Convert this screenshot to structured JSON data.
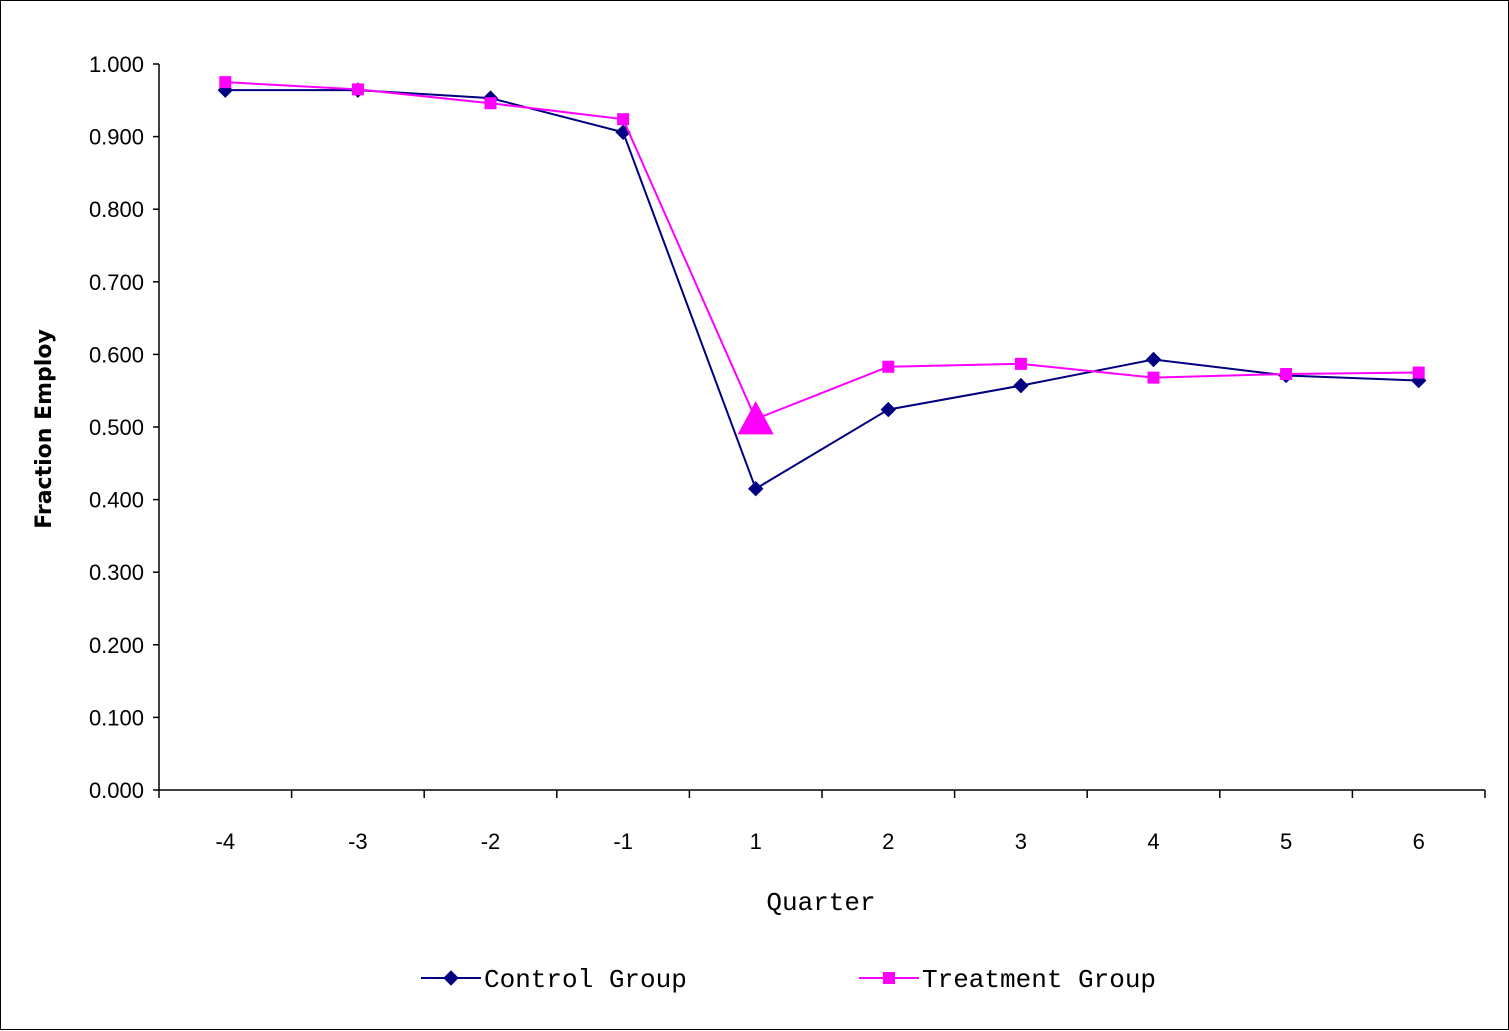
{
  "chart_data": {
    "type": "line",
    "title": "",
    "xlabel": "Quarter",
    "ylabel": "Fraction Employ",
    "categories": [
      "-4",
      "-3",
      "-2",
      "-1",
      "1",
      "2",
      "3",
      "4",
      "5",
      "6"
    ],
    "y_ticks": [
      "0.000",
      "0.100",
      "0.200",
      "0.300",
      "0.400",
      "0.500",
      "0.600",
      "0.700",
      "0.800",
      "0.900",
      "1.000"
    ],
    "ylim": [
      0,
      1
    ],
    "grid": false,
    "legend_position": "bottom",
    "series": [
      {
        "name": "Control Group",
        "color": "#000080",
        "marker": "diamond",
        "values": [
          0.964,
          0.964,
          0.953,
          0.906,
          0.415,
          0.524,
          0.557,
          0.593,
          0.571,
          0.564
        ]
      },
      {
        "name": "Treatment Group",
        "color": "#FF00FF",
        "marker": "square",
        "values": [
          0.975,
          0.965,
          0.946,
          0.924,
          0.511,
          0.583,
          0.587,
          0.568,
          0.573,
          0.575
        ]
      }
    ],
    "annotations": [
      {
        "marker": "triangle",
        "color": "#FF00FF",
        "x": "1",
        "y": 0.511
      }
    ]
  }
}
